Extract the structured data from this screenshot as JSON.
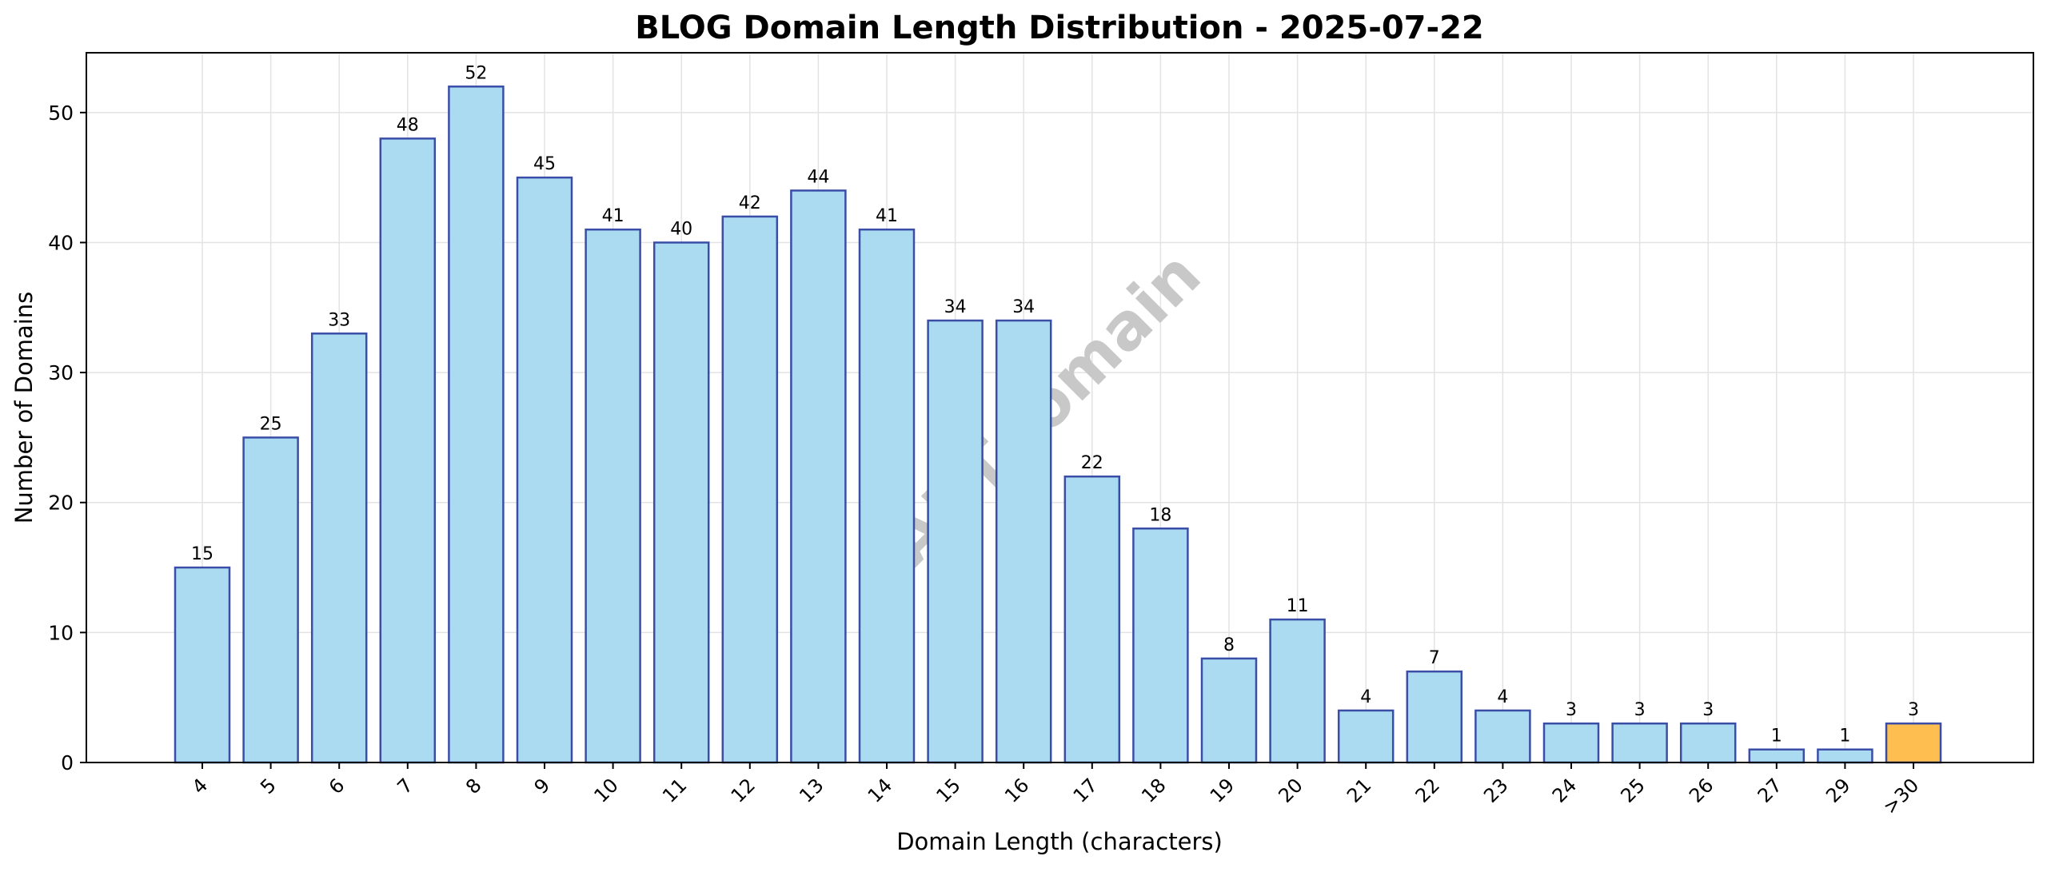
{
  "chart_data": {
    "type": "bar",
    "title": "BLOG Domain Length Distribution - 2025-07-22",
    "xlabel": "Domain Length (characters)",
    "ylabel": "Number of Domains",
    "watermark": "ABTdomain",
    "categories": [
      "4",
      "5",
      "6",
      "7",
      "8",
      "9",
      "10",
      "11",
      "12",
      "13",
      "14",
      "15",
      "16",
      "17",
      "18",
      "19",
      "20",
      "21",
      "22",
      "23",
      "24",
      "25",
      "26",
      "27",
      "29",
      ">30"
    ],
    "values": [
      15,
      25,
      33,
      48,
      52,
      45,
      41,
      40,
      42,
      44,
      41,
      34,
      34,
      22,
      18,
      8,
      11,
      4,
      7,
      4,
      3,
      3,
      3,
      1,
      1,
      3
    ],
    "highlight_index": 25,
    "ylim": [
      0,
      54.6
    ],
    "yticks": [
      0,
      10,
      20,
      30,
      40,
      50
    ],
    "grid": true,
    "colors": {
      "bar_fill": "#ABDBF0",
      "bar_edge": "#3A4EA8",
      "highlight_fill": "#FFBF50",
      "grid": "#E3E3E3",
      "watermark": "#C8C8C8"
    }
  }
}
